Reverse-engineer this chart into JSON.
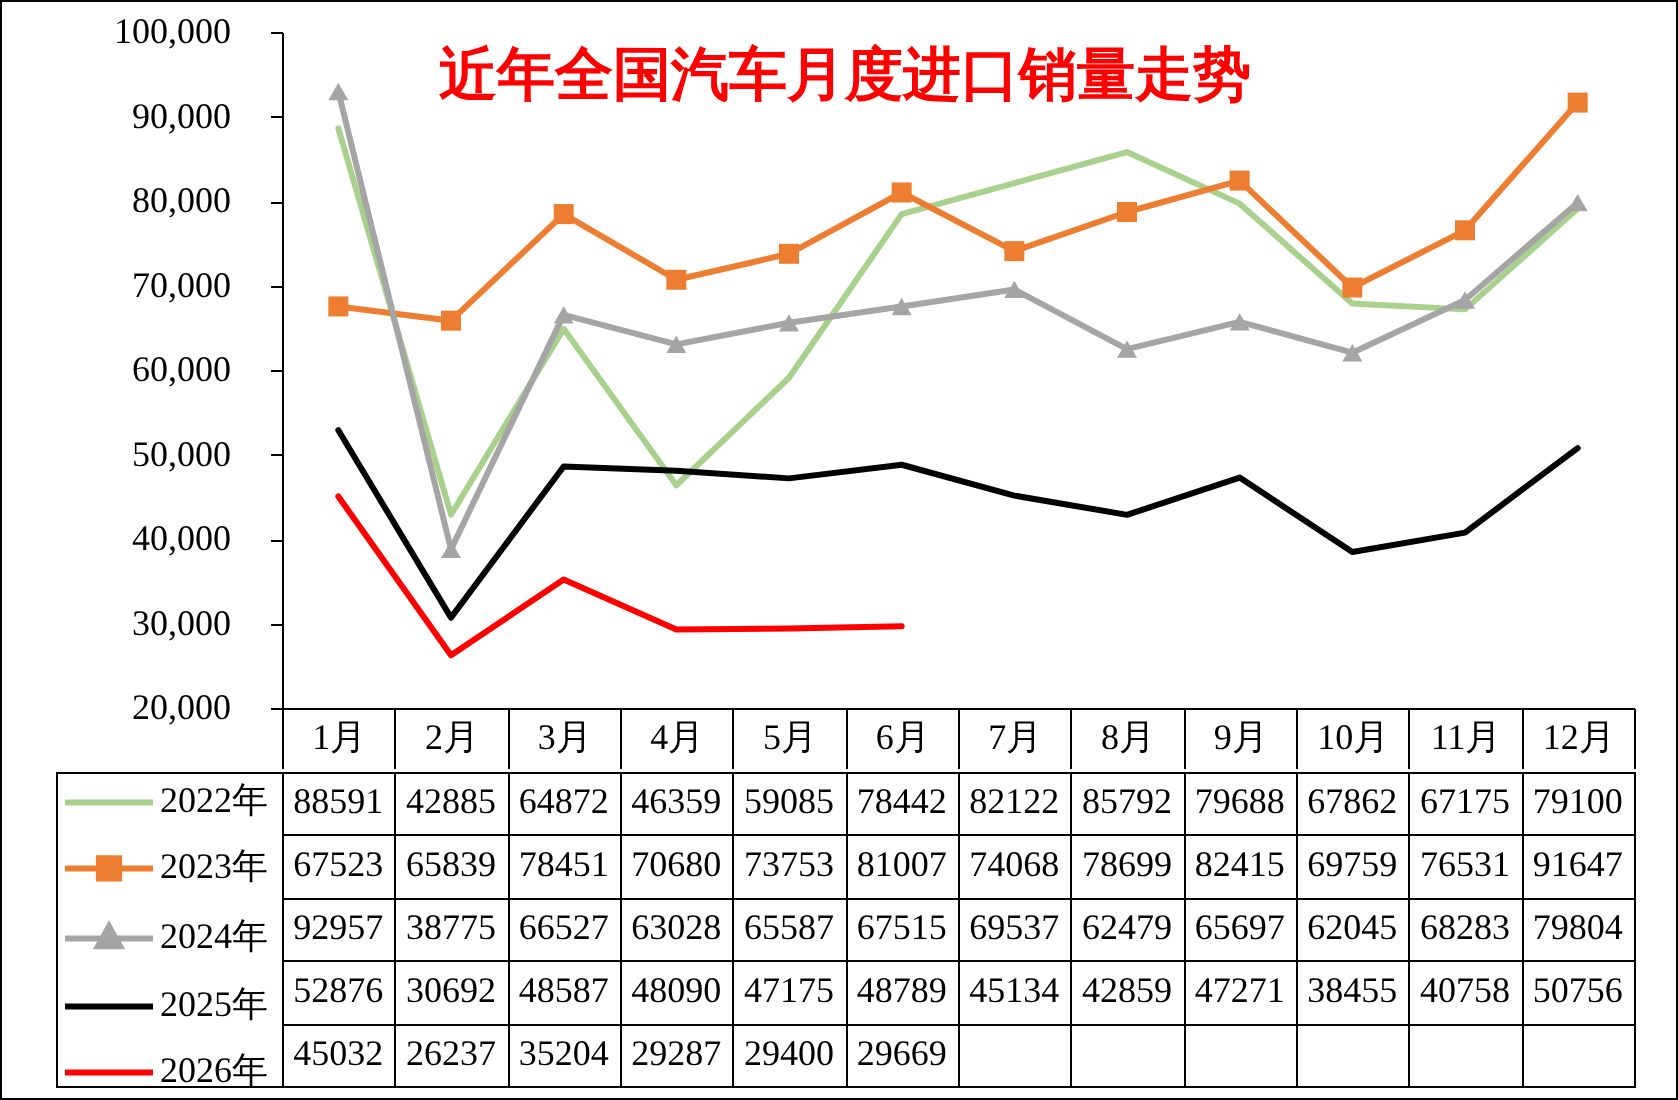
{
  "chart_data": {
    "type": "line",
    "title": "近年全国汽车月度进口销量走势",
    "categories": [
      "1月",
      "2月",
      "3月",
      "4月",
      "5月",
      "6月",
      "7月",
      "8月",
      "9月",
      "10月",
      "11月",
      "12月"
    ],
    "series": [
      {
        "name": "2022年",
        "color": "#a9d18e",
        "values": [
          88591,
          42885,
          64872,
          46359,
          59085,
          78442,
          82122,
          85792,
          79688,
          67862,
          67175,
          79100
        ]
      },
      {
        "name": "2023年",
        "color": "#ed7d31",
        "marker": "square",
        "values": [
          67523,
          65839,
          78451,
          70680,
          73753,
          81007,
          74068,
          78699,
          82415,
          69759,
          76531,
          91647
        ]
      },
      {
        "name": "2024年",
        "color": "#a5a5a5",
        "marker": "triangle",
        "values": [
          92957,
          38775,
          66527,
          63028,
          65587,
          67515,
          69537,
          62479,
          65697,
          62045,
          68283,
          79804
        ]
      },
      {
        "name": "2025年",
        "color": "#000000",
        "values": [
          52876,
          30692,
          48587,
          48090,
          47175,
          48789,
          45134,
          42859,
          47271,
          38455,
          40758,
          50756
        ]
      },
      {
        "name": "2026年",
        "color": "#ff0000",
        "values": [
          45032,
          26237,
          35204,
          29287,
          29400,
          29669,
          null,
          null,
          null,
          null,
          null,
          null
        ]
      }
    ],
    "ylim": [
      20000,
      100000
    ],
    "yticks": [
      {
        "value": 20000,
        "label": "20,000"
      },
      {
        "value": 30000,
        "label": "30,000"
      },
      {
        "value": 40000,
        "label": "40,000"
      },
      {
        "value": 50000,
        "label": "50,000"
      },
      {
        "value": 60000,
        "label": "60,000"
      },
      {
        "value": 70000,
        "label": "70,000"
      },
      {
        "value": 80000,
        "label": "80,000"
      },
      {
        "value": 90000,
        "label": "90,000"
      },
      {
        "value": 100000,
        "label": "100,000"
      }
    ],
    "data_labels": true,
    "legend": "bottom left"
  }
}
